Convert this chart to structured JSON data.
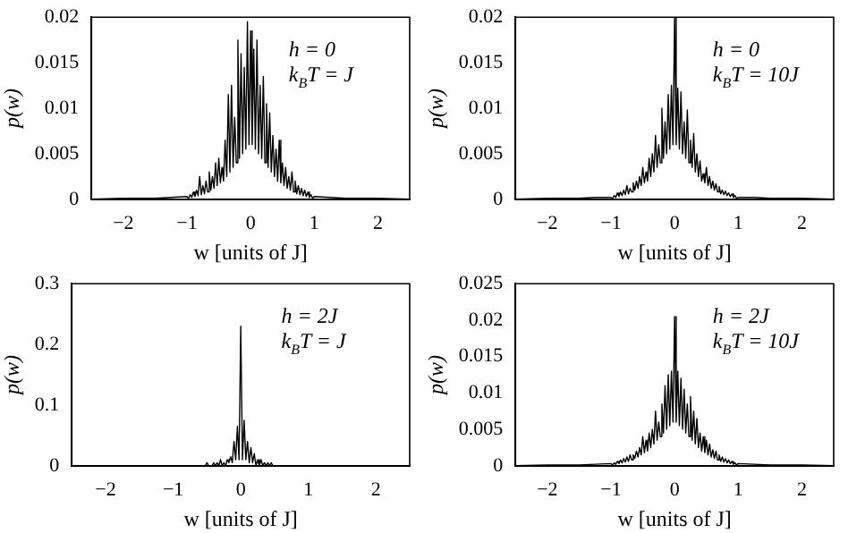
{
  "chart_data": [
    {
      "type": "line",
      "xlabel": "w [units of J]",
      "ylabel": "p(w)",
      "annotations": [
        "h = 0",
        "k$_{B}$T = J"
      ],
      "xlim": [
        -2.5,
        2.5
      ],
      "xticks": [
        -2,
        -1,
        0,
        1,
        2
      ],
      "ylim": [
        0,
        0.02
      ],
      "yticks": [
        0,
        0.005,
        0.01,
        0.015,
        0.02
      ],
      "x": [
        -2.5,
        -2,
        -1.5,
        -1.25,
        -1,
        -0.975,
        -0.95,
        -0.925,
        -0.9,
        -0.875,
        -0.85,
        -0.825,
        -0.8,
        -0.775,
        -0.75,
        -0.725,
        -0.7,
        -0.675,
        -0.65,
        -0.625,
        -0.6,
        -0.575,
        -0.55,
        -0.525,
        -0.5,
        -0.475,
        -0.45,
        -0.425,
        -0.4,
        -0.375,
        -0.35,
        -0.325,
        -0.3,
        -0.275,
        -0.25,
        -0.225,
        -0.2,
        -0.175,
        -0.15,
        -0.125,
        -0.1,
        -0.075,
        -0.05,
        -0.025,
        0,
        0.025,
        0.05,
        0.075,
        0.1,
        0.125,
        0.15,
        0.175,
        0.2,
        0.225,
        0.25,
        0.275,
        0.3,
        0.325,
        0.35,
        0.375,
        0.4,
        0.425,
        0.45,
        0.475,
        0.5,
        0.525,
        0.55,
        0.575,
        0.6,
        0.625,
        0.65,
        0.675,
        0.7,
        0.725,
        0.75,
        0.775,
        0.8,
        0.825,
        0.85,
        0.875,
        0.9,
        0.925,
        0.95,
        0.975,
        1,
        1.25,
        1.5,
        2,
        2.5
      ],
      "series": [
        {
          "color": "#000000",
          "values": [
            0,
            0.0001,
            0.0001,
            0.0002,
            0.0003,
            0.0001,
            0.0005,
            0.0002,
            0.0008,
            0.0003,
            0.001,
            0.0004,
            0.0025,
            0.0005,
            0.0015,
            0.0006,
            0.002,
            0.0008,
            0.003,
            0.001,
            0.0025,
            0.0012,
            0.004,
            0.0015,
            0.0045,
            0.0018,
            0.0035,
            0.002,
            0.0065,
            0.0025,
            0.0115,
            0.003,
            0.0125,
            0.0035,
            0.009,
            0.004,
            0.0175,
            0.0045,
            0.016,
            0.005,
            0.0145,
            0.0055,
            0.0195,
            0.006,
            0.0185,
            0.006,
            0.0165,
            0.0055,
            0.0175,
            0.005,
            0.0125,
            0.0045,
            0.0135,
            0.004,
            0.0105,
            0.0035,
            0.0095,
            0.003,
            0.007,
            0.0025,
            0.0055,
            0.002,
            0.0065,
            0.0018,
            0.004,
            0.0015,
            0.0035,
            0.0012,
            0.0025,
            0.001,
            0.003,
            0.0008,
            0.002,
            0.0006,
            0.0015,
            0.0005,
            0.0012,
            0.0004,
            0.001,
            0.0003,
            0.0008,
            0.0002,
            0.0005,
            0.0001,
            0.0003,
            0.0002,
            0.0001,
            0.0001,
            0
          ]
        }
      ]
    },
    {
      "type": "line",
      "xlabel": "w [units of J]",
      "ylabel": "p(w)",
      "annotations": [
        "h = 0",
        "k$_{B}$T = 10J"
      ],
      "xlim": [
        -2.5,
        2.5
      ],
      "xticks": [
        -2,
        -1,
        0,
        1,
        2
      ],
      "ylim": [
        0,
        0.02
      ],
      "yticks": [
        0,
        0.005,
        0.01,
        0.015,
        0.02
      ],
      "x": [
        -2.5,
        -2,
        -1.5,
        -1.25,
        -1,
        -0.975,
        -0.95,
        -0.925,
        -0.9,
        -0.875,
        -0.85,
        -0.825,
        -0.8,
        -0.775,
        -0.75,
        -0.725,
        -0.7,
        -0.675,
        -0.65,
        -0.625,
        -0.6,
        -0.575,
        -0.55,
        -0.525,
        -0.5,
        -0.475,
        -0.45,
        -0.425,
        -0.4,
        -0.375,
        -0.35,
        -0.325,
        -0.3,
        -0.275,
        -0.25,
        -0.225,
        -0.2,
        -0.175,
        -0.15,
        -0.125,
        -0.1,
        -0.075,
        -0.05,
        -0.025,
        0,
        0.025,
        0.05,
        0.075,
        0.1,
        0.125,
        0.15,
        0.175,
        0.2,
        0.225,
        0.25,
        0.275,
        0.3,
        0.325,
        0.35,
        0.375,
        0.4,
        0.425,
        0.45,
        0.475,
        0.5,
        0.525,
        0.55,
        0.575,
        0.6,
        0.625,
        0.65,
        0.675,
        0.7,
        0.725,
        0.75,
        0.775,
        0.8,
        0.825,
        0.85,
        0.875,
        0.9,
        0.925,
        0.95,
        0.975,
        1,
        1.25,
        1.5,
        2,
        2.5
      ],
      "series": [
        {
          "color": "#000000",
          "values": [
            0,
            0.0001,
            0.0001,
            0.0002,
            0.0002,
            0.0001,
            0.0004,
            0.0002,
            0.0007,
            0.0003,
            0.0008,
            0.0004,
            0.001,
            0.0005,
            0.0015,
            0.0006,
            0.0012,
            0.0008,
            0.0018,
            0.001,
            0.002,
            0.0012,
            0.0025,
            0.0015,
            0.0035,
            0.0018,
            0.003,
            0.002,
            0.0045,
            0.0025,
            0.005,
            0.003,
            0.007,
            0.0035,
            0.006,
            0.004,
            0.01,
            0.0045,
            0.0085,
            0.005,
            0.0115,
            0.0055,
            0.0125,
            0.006,
            0.02,
            0.006,
            0.0122,
            0.0055,
            0.0118,
            0.005,
            0.0085,
            0.0045,
            0.0098,
            0.004,
            0.0065,
            0.0035,
            0.0072,
            0.003,
            0.005,
            0.0025,
            0.0042,
            0.002,
            0.0028,
            0.0018,
            0.0035,
            0.0015,
            0.0025,
            0.0012,
            0.002,
            0.001,
            0.0017,
            0.0008,
            0.0014,
            0.0006,
            0.001,
            0.0005,
            0.0009,
            0.0004,
            0.0007,
            0.0003,
            0.0006,
            0.0002,
            0.0004,
            0.0001,
            0.0002,
            0.0002,
            0.0001,
            0.0001,
            0
          ]
        }
      ]
    },
    {
      "type": "line",
      "xlabel": "w [units of J]",
      "ylabel": "p(w)",
      "annotations": [
        "h = 2J",
        "k$_{B}$T = J"
      ],
      "xlim": [
        -2.5,
        2.5
      ],
      "xticks": [
        -2,
        -1,
        0,
        1,
        2
      ],
      "ylim": [
        0,
        0.3
      ],
      "yticks": [
        0,
        0.1,
        0.2,
        0.3
      ],
      "x": [
        -2.5,
        -2,
        -1.5,
        -1.25,
        -1,
        -0.975,
        -0.95,
        -0.925,
        -0.9,
        -0.875,
        -0.85,
        -0.825,
        -0.8,
        -0.775,
        -0.75,
        -0.725,
        -0.7,
        -0.675,
        -0.65,
        -0.625,
        -0.6,
        -0.575,
        -0.55,
        -0.525,
        -0.5,
        -0.475,
        -0.45,
        -0.425,
        -0.4,
        -0.375,
        -0.35,
        -0.325,
        -0.3,
        -0.275,
        -0.25,
        -0.225,
        -0.2,
        -0.175,
        -0.15,
        -0.125,
        -0.1,
        -0.075,
        -0.05,
        -0.025,
        0,
        0.025,
        0.05,
        0.075,
        0.1,
        0.125,
        0.15,
        0.175,
        0.2,
        0.225,
        0.25,
        0.275,
        0.3,
        0.325,
        0.35,
        0.375,
        0.4,
        0.425,
        0.45,
        0.475,
        0.5,
        0.525,
        0.55,
        0.575,
        0.6,
        0.625,
        0.65,
        0.675,
        0.7,
        0.725,
        0.75,
        0.775,
        0.8,
        0.825,
        0.85,
        0.875,
        0.9,
        0.925,
        0.95,
        0.975,
        1,
        1.25,
        1.5,
        2,
        2.5
      ],
      "series": [
        {
          "color": "#000000",
          "values": [
            0,
            0,
            0,
            0,
            0,
            0,
            0,
            0,
            0,
            0,
            0,
            0,
            0,
            0,
            0,
            0,
            0,
            0,
            0,
            0,
            0,
            0,
            0,
            0,
            0.005,
            0,
            0,
            0,
            0.005,
            0,
            0.005,
            0,
            0.01,
            0,
            0.005,
            0,
            0.01,
            0.005,
            0.015,
            0.005,
            0.04,
            0.01,
            0.065,
            0.01,
            0.23,
            0.01,
            0.075,
            0.01,
            0.04,
            0.005,
            0.03,
            0.005,
            0.02,
            0,
            0.01,
            0,
            0.01,
            0,
            0.005,
            0,
            0.005,
            0,
            0.005,
            0,
            0,
            0,
            0,
            0,
            0,
            0,
            0,
            0,
            0,
            0,
            0,
            0,
            0,
            0,
            0,
            0,
            0,
            0,
            0,
            0,
            0,
            0,
            0,
            0,
            0
          ]
        }
      ]
    },
    {
      "type": "line",
      "xlabel": "w [units of J]",
      "ylabel": "p(w)",
      "annotations": [
        "h = 2J",
        "k$_{B}$T = 10J"
      ],
      "xlim": [
        -2.5,
        2.5
      ],
      "xticks": [
        -2,
        -1,
        0,
        1,
        2
      ],
      "ylim": [
        0,
        0.025
      ],
      "yticks": [
        0,
        0.005,
        0.01,
        0.015,
        0.02,
        0.025
      ],
      "x": [
        -2.5,
        -2,
        -1.5,
        -1.25,
        -1,
        -0.975,
        -0.95,
        -0.925,
        -0.9,
        -0.875,
        -0.85,
        -0.825,
        -0.8,
        -0.775,
        -0.75,
        -0.725,
        -0.7,
        -0.675,
        -0.65,
        -0.625,
        -0.6,
        -0.575,
        -0.55,
        -0.525,
        -0.5,
        -0.475,
        -0.45,
        -0.425,
        -0.4,
        -0.375,
        -0.35,
        -0.325,
        -0.3,
        -0.275,
        -0.25,
        -0.225,
        -0.2,
        -0.175,
        -0.15,
        -0.125,
        -0.1,
        -0.075,
        -0.05,
        -0.025,
        0,
        0.025,
        0.05,
        0.075,
        0.1,
        0.125,
        0.15,
        0.175,
        0.2,
        0.225,
        0.25,
        0.275,
        0.3,
        0.325,
        0.35,
        0.375,
        0.4,
        0.425,
        0.45,
        0.475,
        0.5,
        0.525,
        0.55,
        0.575,
        0.6,
        0.625,
        0.65,
        0.675,
        0.7,
        0.725,
        0.75,
        0.775,
        0.8,
        0.825,
        0.85,
        0.875,
        0.9,
        0.925,
        0.95,
        0.975,
        1,
        1.25,
        1.5,
        2,
        2.5
      ],
      "series": [
        {
          "color": "#000000",
          "values": [
            0,
            0.0001,
            0.0001,
            0.0002,
            0.0003,
            0.0001,
            0.0004,
            0.0002,
            0.0006,
            0.0003,
            0.0008,
            0.0004,
            0.001,
            0.0005,
            0.0012,
            0.0006,
            0.0015,
            0.0008,
            0.0015,
            0.001,
            0.002,
            0.0012,
            0.0025,
            0.0015,
            0.004,
            0.0018,
            0.0035,
            0.002,
            0.0045,
            0.0025,
            0.005,
            0.003,
            0.0075,
            0.0035,
            0.006,
            0.004,
            0.0085,
            0.0045,
            0.011,
            0.005,
            0.0125,
            0.0055,
            0.013,
            0.006,
            0.0205,
            0.006,
            0.013,
            0.0055,
            0.012,
            0.005,
            0.0105,
            0.0045,
            0.0085,
            0.004,
            0.0095,
            0.0035,
            0.0075,
            0.003,
            0.0065,
            0.0025,
            0.0045,
            0.002,
            0.004,
            0.0018,
            0.0035,
            0.0015,
            0.003,
            0.0012,
            0.0022,
            0.001,
            0.002,
            0.0008,
            0.0015,
            0.0006,
            0.0012,
            0.0005,
            0.001,
            0.0004,
            0.0008,
            0.0003,
            0.0006,
            0.0002,
            0.0004,
            0.0001,
            0.0003,
            0.0002,
            0.0001,
            0.0001,
            0
          ]
        }
      ]
    }
  ]
}
